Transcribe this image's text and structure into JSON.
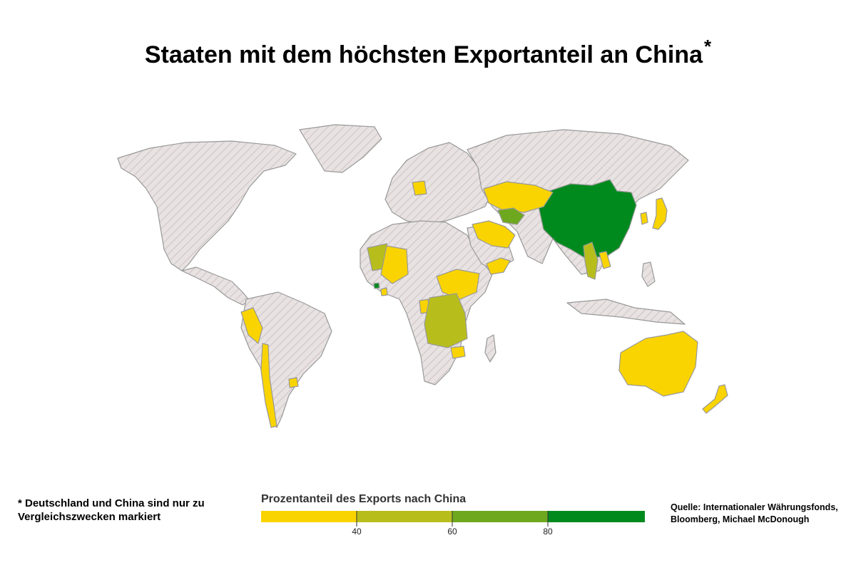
{
  "title": "Staaten mit dem höchsten Exportanteil an China",
  "title_mark": "*",
  "footnote": "* Deutschland und China sind nur zu Vergleichszwecken markiert",
  "legend": {
    "title": "Prozentanteil des Exports nach China",
    "ticks": [
      "40",
      "60",
      "80"
    ],
    "colors": [
      "#f9d400",
      "#b7be1c",
      "#6ea81f",
      "#008a1e"
    ]
  },
  "source": "Quelle: Internationaler Währungsfonds, Bloomberg, Michael McDonough",
  "map_colors": {
    "no_data_fill": "#e8e2e2",
    "no_data_hatch": "#d6cdcd",
    "border": "#999999"
  },
  "highlighted_regions": [
    {
      "name": "China",
      "class": "80+"
    },
    {
      "name": "Gambia",
      "class": "80+"
    },
    {
      "name": "Turkmenistan",
      "class": "60-80"
    },
    {
      "name": "Mauretanien",
      "class": "40-60"
    },
    {
      "name": "Myanmar",
      "class": "40-60"
    },
    {
      "name": "Kongo",
      "class": "40-60"
    },
    {
      "name": "Angola",
      "class": "40-60"
    },
    {
      "name": "Demokratische Republik Kongo",
      "class": "40-60"
    },
    {
      "name": "Sambia",
      "class": "40-60"
    },
    {
      "name": "Deutschland",
      "class": "<40"
    },
    {
      "name": "Kasachstan",
      "class": "<40"
    },
    {
      "name": "Iran",
      "class": "<40"
    },
    {
      "name": "Irak",
      "class": "<40"
    },
    {
      "name": "Oman",
      "class": "<40"
    },
    {
      "name": "Jemen",
      "class": "<40"
    },
    {
      "name": "Äthiopien",
      "class": "<40"
    },
    {
      "name": "Südsudan",
      "class": "<40"
    },
    {
      "name": "Mali",
      "class": "<40"
    },
    {
      "name": "Burkina Faso",
      "class": "<40"
    },
    {
      "name": "Sierra Leone",
      "class": "<40"
    },
    {
      "name": "Gabun",
      "class": "<40"
    },
    {
      "name": "Simbabwe",
      "class": "<40"
    },
    {
      "name": "Japan",
      "class": "<40"
    },
    {
      "name": "Südkorea",
      "class": "<40"
    },
    {
      "name": "Laos",
      "class": "<40"
    },
    {
      "name": "Peru",
      "class": "<40"
    },
    {
      "name": "Chile",
      "class": "<40"
    },
    {
      "name": "Uruguay",
      "class": "<40"
    },
    {
      "name": "Australien",
      "class": "<40"
    },
    {
      "name": "Neuseeland",
      "class": "<40"
    }
  ]
}
